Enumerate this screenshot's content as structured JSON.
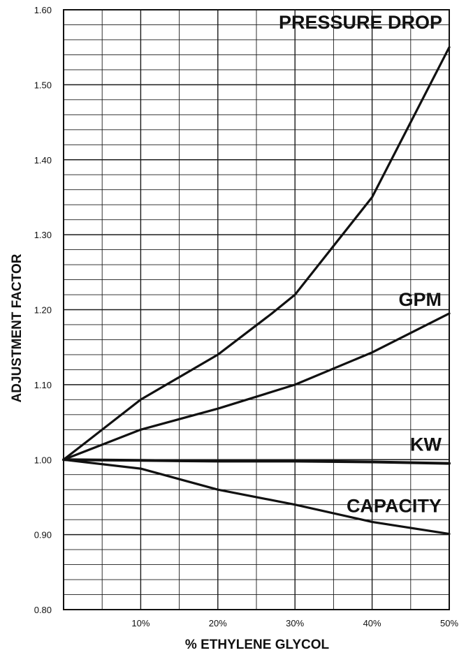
{
  "chart_data": {
    "type": "line",
    "title": "",
    "xlabel": "% ETHYLENE GLYCOL",
    "ylabel": "ADJUSTMENT FACTOR",
    "xlim": [
      0,
      50
    ],
    "ylim": [
      0.8,
      1.6
    ],
    "grid": true,
    "x_ticks": [
      {
        "value": 10,
        "label": "10%"
      },
      {
        "value": 20,
        "label": "20%"
      },
      {
        "value": 30,
        "label": "30%"
      },
      {
        "value": 40,
        "label": "40%"
      },
      {
        "value": 50,
        "label": "50%"
      }
    ],
    "y_ticks": [
      {
        "value": 0.8,
        "label": "0.80"
      },
      {
        "value": 0.9,
        "label": "0.90"
      },
      {
        "value": 1.0,
        "label": "1.00"
      },
      {
        "value": 1.1,
        "label": "1.10"
      },
      {
        "value": 1.2,
        "label": "1.20"
      },
      {
        "value": 1.3,
        "label": "1.30"
      },
      {
        "value": 1.4,
        "label": "1.40"
      },
      {
        "value": 1.5,
        "label": "1.50"
      },
      {
        "value": 1.6,
        "label": "1.60"
      }
    ],
    "series": [
      {
        "name": "PRESSURE DROP",
        "label_at": [
          50,
          1.575
        ],
        "label_anchor": "end",
        "x": [
          0,
          10,
          20,
          27,
          30,
          40,
          50
        ],
        "y": [
          1.0,
          1.08,
          1.14,
          1.195,
          1.22,
          1.35,
          1.55
        ]
      },
      {
        "name": "GPM",
        "label_at": [
          49,
          1.205
        ],
        "label_anchor": "end",
        "x": [
          0,
          10,
          20,
          30,
          40,
          50
        ],
        "y": [
          1.0,
          1.04,
          1.068,
          1.1,
          1.143,
          1.195
        ]
      },
      {
        "name": "KW",
        "label_at": [
          49,
          1.012
        ],
        "label_anchor": "end",
        "x": [
          0,
          10,
          20,
          30,
          40,
          50
        ],
        "y": [
          1.0,
          0.999,
          0.998,
          0.998,
          0.997,
          0.995
        ]
      },
      {
        "name": "CAPACITY",
        "label_at": [
          49,
          0.93
        ],
        "label_anchor": "end",
        "x": [
          0,
          10,
          20,
          30,
          40,
          50
        ],
        "y": [
          1.0,
          0.988,
          0.96,
          0.94,
          0.917,
          0.901
        ]
      }
    ]
  }
}
